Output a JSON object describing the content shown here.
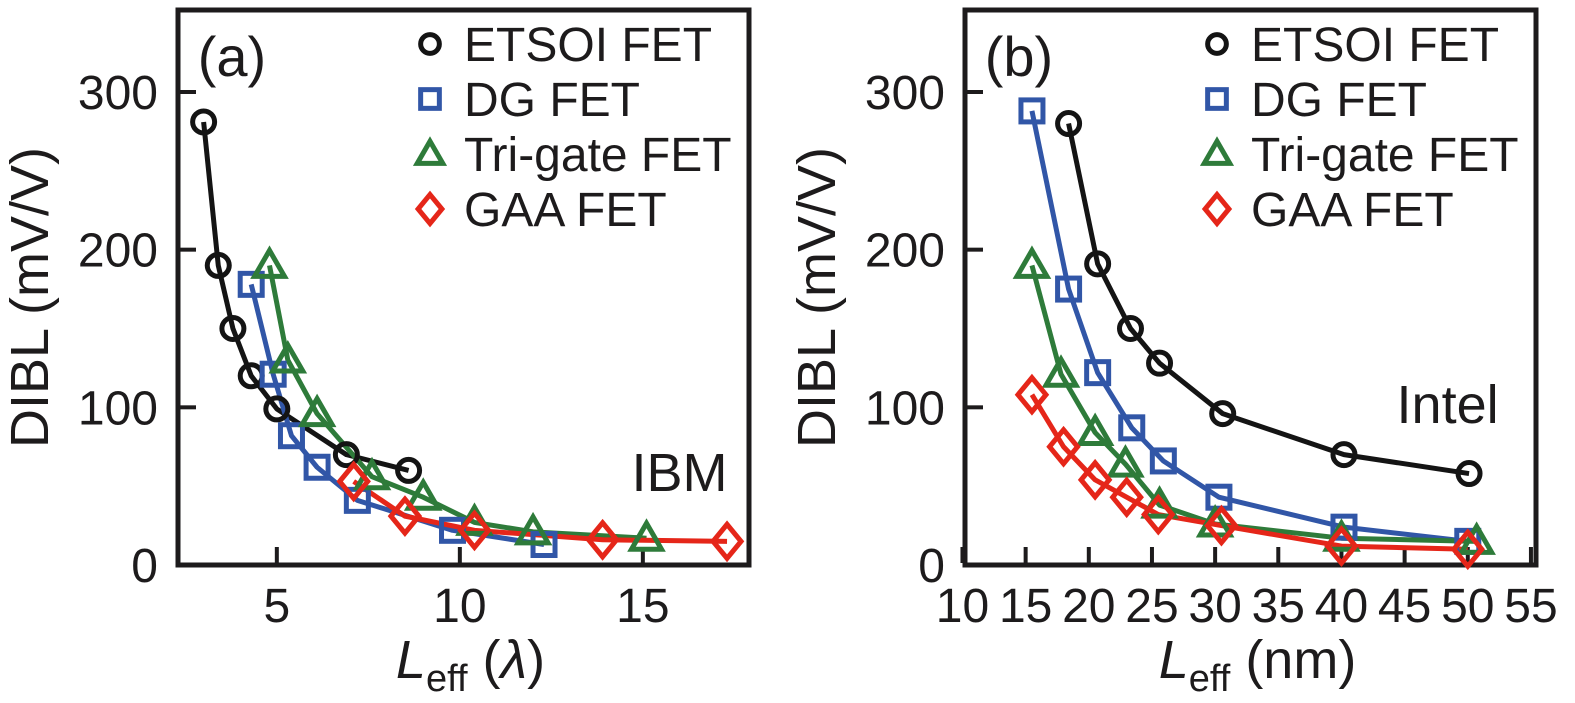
{
  "figure": {
    "background": "#ffffff",
    "text_color": "#1d1b1c",
    "axis_color": "#1d1b1c",
    "ylabel": "DIBL (mV/V)"
  },
  "chart_data": [
    {
      "type": "line",
      "panel_label": "(a)",
      "annotation": {
        "text": "IBM",
        "x": 16.0,
        "y": 47
      },
      "xlabel_parts": [
        [
          "L",
          "italic"
        ],
        [
          "eff",
          "sub"
        ],
        [
          " (",
          ""
        ],
        [
          "λ",
          "italic"
        ],
        [
          ")",
          ""
        ]
      ],
      "ylabel": "DIBL (mV/V)",
      "xlim": [
        2.3,
        17.9
      ],
      "ylim": [
        0,
        352
      ],
      "xticks": [
        5,
        10,
        15
      ],
      "yticks": [
        0,
        100,
        200,
        300
      ],
      "grid": false,
      "legend_position": "top-right",
      "series": [
        {
          "name": "ETSOI FET",
          "marker": "circle",
          "color": "#141414",
          "x": [
            3.0,
            3.4,
            3.8,
            4.3,
            5.0,
            6.9,
            8.6
          ],
          "y": [
            281,
            190,
            150,
            120,
            99,
            70,
            60
          ]
        },
        {
          "name": "DG FET",
          "marker": "square",
          "color": "#3156a7",
          "x": [
            4.3,
            4.9,
            5.4,
            6.1,
            7.2,
            9.8,
            12.3
          ],
          "y": [
            178,
            121,
            82,
            62,
            41,
            22,
            13
          ]
        },
        {
          "name": "Tri-gate FET",
          "marker": "triangle",
          "color": "#2e7b3a",
          "x": [
            4.8,
            5.3,
            6.1,
            7.6,
            9.0,
            10.4,
            12.0,
            15.1
          ],
          "y": [
            190,
            130,
            96,
            56,
            43,
            27,
            21,
            17
          ]
        },
        {
          "name": "GAA FET",
          "marker": "diamond",
          "color": "#e52619",
          "x": [
            7.1,
            8.5,
            10.4,
            13.9,
            17.3
          ],
          "y": [
            53,
            31,
            22,
            16,
            15
          ]
        }
      ]
    },
    {
      "type": "line",
      "panel_label": "(b)",
      "annotation": {
        "text": "Intel",
        "x": 48.4,
        "y": 90
      },
      "xlabel_parts": [
        [
          "L",
          "italic"
        ],
        [
          "eff",
          "sub"
        ],
        [
          " (nm)",
          ""
        ]
      ],
      "ylabel": "DIBL (mV/V)",
      "xlim": [
        10.2,
        55.4
      ],
      "ylim": [
        0,
        352
      ],
      "xticks": [
        10,
        15,
        20,
        25,
        30,
        35,
        40,
        45,
        50,
        55
      ],
      "yticks": [
        0,
        100,
        200,
        300
      ],
      "grid": false,
      "legend_position": "top-right",
      "series": [
        {
          "name": "ETSOI FET",
          "marker": "circle",
          "color": "#141414",
          "x": [
            18.4,
            20.7,
            23.3,
            25.6,
            30.6,
            40.2,
            50.1
          ],
          "y": [
            280,
            191,
            150,
            128,
            96,
            70,
            58
          ]
        },
        {
          "name": "DG FET",
          "marker": "square",
          "color": "#3156a7",
          "x": [
            15.5,
            18.4,
            20.7,
            23.4,
            25.9,
            30.3,
            40.2,
            50.0
          ],
          "y": [
            288,
            175,
            122,
            87,
            66,
            43,
            24,
            15
          ]
        },
        {
          "name": "Tri-gate FET",
          "marker": "triangle",
          "color": "#2e7b3a",
          "x": [
            15.5,
            17.8,
            20.5,
            22.9,
            25.6,
            30.0,
            40.0,
            50.7
          ],
          "y": [
            190,
            121,
            84,
            64,
            38,
            26,
            17,
            15
          ]
        },
        {
          "name": "GAA FET",
          "marker": "diamond",
          "color": "#e52619",
          "x": [
            15.5,
            18.0,
            20.5,
            23.0,
            25.5,
            30.5,
            40.0,
            50.0
          ],
          "y": [
            108,
            75,
            54,
            43,
            32,
            25,
            12,
            10
          ]
        }
      ]
    }
  ]
}
